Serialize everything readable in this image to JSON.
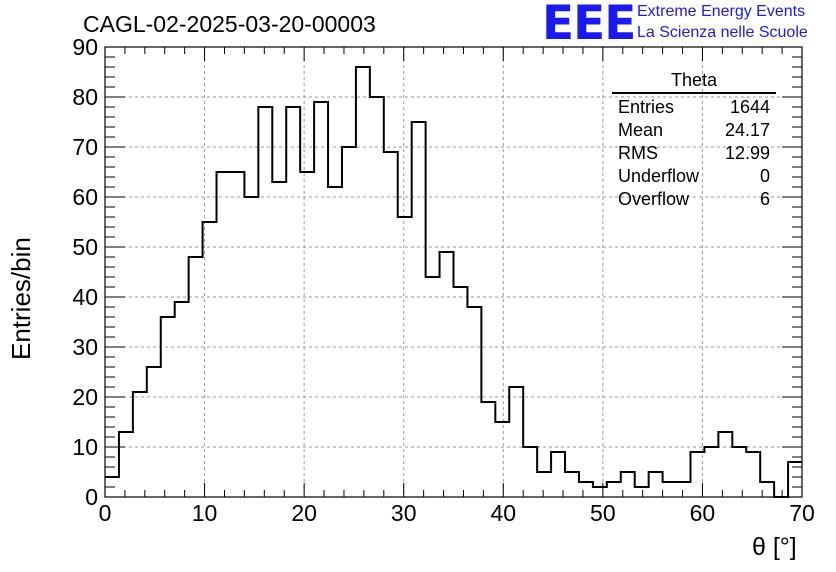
{
  "header": {
    "run_title": "CAGL-02-2025-03-20-00003",
    "logo_text": "EEE",
    "logo_line1": "Extreme Energy Events",
    "logo_line2": "La Scienza nelle Scuole"
  },
  "stats_box": {
    "title": "Theta",
    "rows": [
      {
        "label": "Entries",
        "value": "1644"
      },
      {
        "label": "Mean",
        "value": "24.17"
      },
      {
        "label": "RMS",
        "value": "12.99"
      },
      {
        "label": "Underflow",
        "value": "0"
      },
      {
        "label": "Overflow",
        "value": "6"
      }
    ]
  },
  "colors": {
    "line": "#000000",
    "grid": "#9a9a9a",
    "logo": "#1a1aee"
  },
  "chart_data": {
    "type": "bar",
    "histogram": true,
    "xlabel": "θ [°]",
    "ylabel": "Entries/bin",
    "xlim": [
      0,
      70
    ],
    "ylim": [
      0,
      90
    ],
    "bin_width": 1.4,
    "grid": true,
    "x_ticks": [
      0,
      10,
      20,
      30,
      40,
      50,
      60,
      70
    ],
    "y_ticks": [
      0,
      10,
      20,
      30,
      40,
      50,
      60,
      70,
      80,
      90
    ],
    "values": [
      4,
      13,
      21,
      26,
      36,
      39,
      48,
      55,
      65,
      65,
      60,
      78,
      63,
      78,
      65,
      79,
      62,
      70,
      86,
      80,
      69,
      56,
      75,
      44,
      49,
      42,
      38,
      19,
      15,
      22,
      10,
      5,
      9,
      5,
      3,
      2,
      3,
      5,
      2,
      5,
      3,
      3,
      9,
      10,
      13,
      10,
      9,
      3,
      0,
      7
    ]
  }
}
